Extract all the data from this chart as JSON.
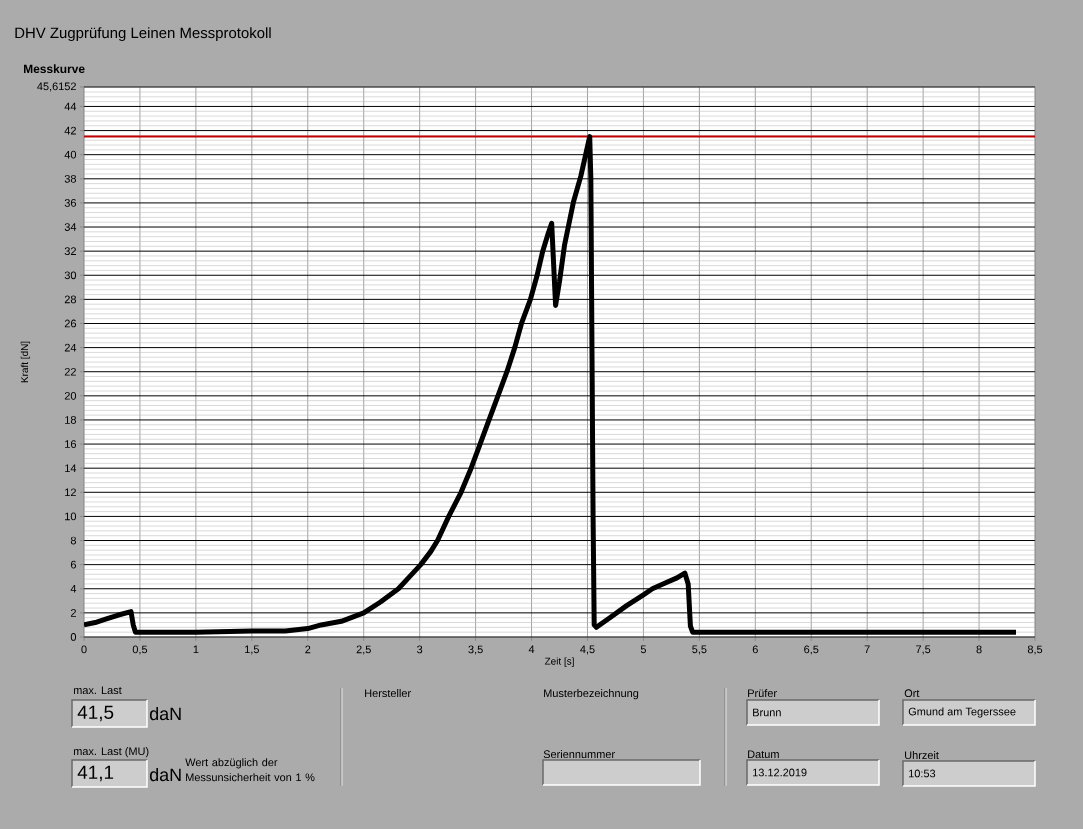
{
  "chart_data": {
    "type": "line",
    "title": "DHV Zugprüfung Leinen Messprotokoll",
    "subtitle": "Messkurve",
    "xlabel": "Zeit [s]",
    "ylabel": "Kraft [dN]",
    "x": [
      0,
      0.1,
      0.2,
      0.3,
      0.42,
      0.44,
      0.46,
      1.0,
      1.5,
      1.8,
      2.0,
      2.12,
      2.3,
      2.5,
      2.65,
      2.81,
      2.9,
      3.01,
      3.1,
      3.16,
      3.26,
      3.37,
      3.46,
      3.54,
      3.62,
      3.7,
      3.78,
      3.85,
      3.91,
      3.99,
      4.05,
      4.1,
      4.15,
      4.18,
      4.215,
      4.25,
      4.295,
      4.375,
      4.44,
      4.52,
      4.53,
      4.55,
      4.56,
      4.58,
      4.7,
      4.85,
      5.0,
      5.08,
      5.2,
      5.3,
      5.37,
      5.4,
      5.42,
      5.44,
      6.0,
      7.0,
      8.0,
      8.33
    ],
    "values": [
      1.0,
      1.2,
      1.5,
      1.8,
      2.1,
      1.0,
      0.4,
      0.4,
      0.5,
      0.5,
      0.7,
      1.0,
      1.3,
      2.0,
      2.9,
      4.0,
      4.9,
      6.0,
      7.1,
      8.0,
      10.0,
      12.0,
      14.0,
      16.0,
      18.0,
      20.0,
      22.0,
      24.0,
      26.0,
      28.0,
      30.0,
      32.0,
      33.5,
      34.3,
      27.5,
      29.5,
      32.5,
      36.1,
      38.2,
      41.5,
      38.0,
      10.0,
      1.0,
      0.8,
      1.6,
      2.6,
      3.5,
      4.0,
      4.5,
      4.9,
      5.3,
      4.4,
      0.9,
      0.4,
      0.4,
      0.4,
      0.4,
      0.4
    ],
    "color": "#000000",
    "marker": "none",
    "line_style": "solid",
    "grid": true,
    "xlim": [
      0,
      8.5
    ],
    "ylim": [
      0,
      45.6152
    ],
    "xticks": [
      0,
      {
        "value": 0.5,
        "label": "0,5"
      },
      1,
      {
        "value": 1.5,
        "label": "1,5"
      },
      2,
      {
        "value": 2.5,
        "label": "2,5"
      },
      3,
      {
        "value": 3.5,
        "label": "3,5"
      },
      4,
      {
        "value": 4.5,
        "label": "4,5"
      },
      5,
      {
        "value": 5.5,
        "label": "5,5"
      },
      6,
      {
        "value": 6.5,
        "label": "6,5"
      },
      7,
      {
        "value": 7.5,
        "label": "7,5"
      },
      8,
      {
        "value": 8.5,
        "label": "8,5"
      }
    ],
    "yticks": [
      0,
      2,
      4,
      6,
      8,
      10,
      12,
      14,
      16,
      18,
      20,
      22,
      24,
      26,
      28,
      30,
      32,
      34,
      36,
      38,
      40,
      42,
      44,
      {
        "value": 45.6152,
        "label": "45,6152"
      }
    ],
    "ref_lines": [
      {
        "axis": "y",
        "value": 41.5,
        "color": "#c00000"
      }
    ],
    "annotations": [
      "max. Last",
      "41,5",
      "daN",
      "max. Last (MU)",
      "41,1",
      "daN",
      "Wert abzüglich der Messunsicherheit von 1 %",
      "Hersteller",
      "Musterbezeichnung",
      "Seriennummer",
      "Prüfer",
      "Brunn",
      "Datum",
      "13.12.2019",
      "Ort",
      "Gmund am Tegerssee",
      "Uhrzeit",
      "10:53"
    ]
  }
}
